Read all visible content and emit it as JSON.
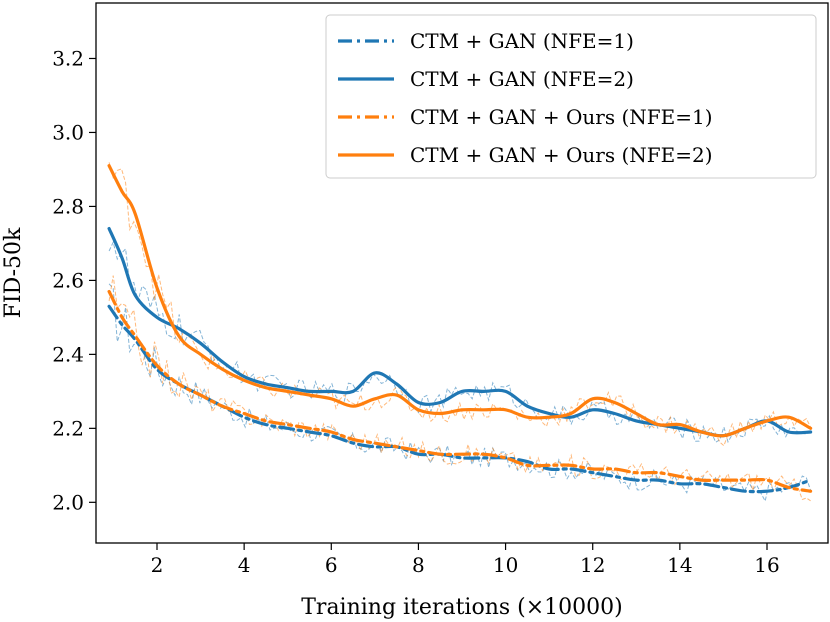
{
  "chart_data": {
    "type": "line",
    "title": "",
    "xlabel": "Training iterations (×10000)",
    "ylabel": "FID-50k",
    "xlim": [
      0.6,
      17.4
    ],
    "ylim": [
      1.89,
      3.35
    ],
    "xticks": [
      "2",
      "4",
      "6",
      "8",
      "10",
      "12",
      "14",
      "16"
    ],
    "yticks": [
      "2.0",
      "2.2",
      "2.4",
      "2.6",
      "2.8",
      "3.0",
      "3.2"
    ],
    "legend_position": "top-right",
    "series": [
      {
        "name": "CTM + GAN (NFE=1)",
        "color": "#1f77b4",
        "style": "dashdot",
        "x": [
          0.9,
          1.2,
          1.5,
          2,
          2.5,
          3,
          3.5,
          4,
          4.5,
          5,
          5.5,
          6,
          6.5,
          7,
          7.5,
          8,
          8.5,
          9,
          9.5,
          10,
          10.5,
          11,
          11.5,
          12,
          12.5,
          13,
          13.5,
          14,
          14.5,
          15,
          15.5,
          16,
          16.5,
          17
        ],
        "y": [
          2.53,
          2.48,
          2.44,
          2.36,
          2.32,
          2.29,
          2.26,
          2.23,
          2.21,
          2.2,
          2.19,
          2.18,
          2.16,
          2.15,
          2.15,
          2.13,
          2.13,
          2.12,
          2.12,
          2.12,
          2.11,
          2.09,
          2.09,
          2.08,
          2.07,
          2.06,
          2.06,
          2.05,
          2.05,
          2.04,
          2.03,
          2.03,
          2.04,
          2.06
        ]
      },
      {
        "name": "CTM + GAN (NFE=2)",
        "color": "#1f77b4",
        "style": "solid",
        "x": [
          0.9,
          1.2,
          1.5,
          2,
          2.5,
          3,
          3.5,
          4,
          4.5,
          5,
          5.5,
          6,
          6.5,
          7,
          7.5,
          8,
          8.5,
          9,
          9.5,
          10,
          10.5,
          11,
          11.5,
          12,
          12.5,
          13,
          13.5,
          14,
          14.5,
          15,
          15.5,
          16,
          16.5,
          17
        ],
        "y": [
          2.74,
          2.66,
          2.56,
          2.5,
          2.47,
          2.43,
          2.38,
          2.34,
          2.32,
          2.31,
          2.3,
          2.3,
          2.3,
          2.35,
          2.32,
          2.27,
          2.27,
          2.3,
          2.3,
          2.3,
          2.26,
          2.24,
          2.23,
          2.25,
          2.24,
          2.22,
          2.21,
          2.2,
          2.19,
          2.18,
          2.2,
          2.22,
          2.19,
          2.19
        ]
      },
      {
        "name": "CTM + GAN + Ours (NFE=1)",
        "color": "#ff7f0e",
        "style": "dashdot",
        "x": [
          0.9,
          1.2,
          1.5,
          2,
          2.5,
          3,
          3.5,
          4,
          4.5,
          5,
          5.5,
          6,
          6.5,
          7,
          7.5,
          8,
          8.5,
          9,
          9.5,
          10,
          10.5,
          11,
          11.5,
          12,
          12.5,
          13,
          13.5,
          14,
          14.5,
          15,
          15.5,
          16,
          16.5,
          17
        ],
        "y": [
          2.57,
          2.5,
          2.45,
          2.37,
          2.32,
          2.29,
          2.26,
          2.24,
          2.22,
          2.21,
          2.2,
          2.19,
          2.17,
          2.16,
          2.15,
          2.14,
          2.13,
          2.13,
          2.13,
          2.12,
          2.1,
          2.1,
          2.1,
          2.09,
          2.09,
          2.08,
          2.08,
          2.07,
          2.06,
          2.06,
          2.06,
          2.06,
          2.04,
          2.03
        ]
      },
      {
        "name": "CTM + GAN + Ours (NFE=2)",
        "color": "#ff7f0e",
        "style": "solid",
        "x": [
          0.9,
          1.2,
          1.5,
          2,
          2.5,
          3,
          3.5,
          4,
          4.5,
          5,
          5.5,
          6,
          6.5,
          7,
          7.5,
          8,
          8.5,
          9,
          9.5,
          10,
          10.5,
          11,
          11.5,
          12,
          12.5,
          13,
          13.5,
          14,
          14.5,
          15,
          15.5,
          16,
          16.5,
          17
        ],
        "y": [
          2.91,
          2.84,
          2.78,
          2.58,
          2.45,
          2.4,
          2.36,
          2.33,
          2.31,
          2.3,
          2.29,
          2.28,
          2.26,
          2.28,
          2.29,
          2.25,
          2.24,
          2.25,
          2.25,
          2.25,
          2.23,
          2.23,
          2.24,
          2.28,
          2.27,
          2.24,
          2.21,
          2.21,
          2.19,
          2.18,
          2.2,
          2.22,
          2.23,
          2.2
        ]
      }
    ]
  }
}
